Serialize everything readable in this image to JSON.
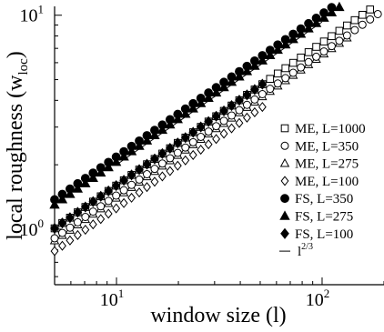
{
  "chart_data": {
    "type": "scatter",
    "xscale": "log",
    "yscale": "log",
    "xlim": [
      5,
      200
    ],
    "ylim": [
      0.55,
      11
    ],
    "xlabel": "window size (l)",
    "ylabel": "local roughness (w",
    "ylabel_sub": "loc",
    "ylabel_close": ")",
    "x_ticks": [
      {
        "value": 10,
        "base": "10",
        "exp": "1"
      },
      {
        "value": 100,
        "base": "10",
        "exp": "2"
      }
    ],
    "y_ticks": [
      {
        "value": 1,
        "base": "10",
        "exp": "0"
      },
      {
        "value": 10,
        "base": "10",
        "exp": "1"
      }
    ],
    "legend_position": "right",
    "series": [
      {
        "name": "ME, L=1000",
        "marker": "square",
        "filled": false,
        "a": 0.345,
        "end": 200
      },
      {
        "name": "ME, L=350",
        "marker": "circle",
        "filled": false,
        "a": 0.31,
        "end": 190
      },
      {
        "name": "ME, L=275",
        "marker": "triangle",
        "filled": false,
        "a": 0.302,
        "end": 140
      },
      {
        "name": "ME, L=100",
        "marker": "diamond",
        "filled": false,
        "a": 0.27,
        "end": 52
      },
      {
        "name": "FS, L=350",
        "marker": "circle",
        "filled": true,
        "a": 0.47,
        "end": 175
      },
      {
        "name": "FS, L=275",
        "marker": "triangle",
        "filled": true,
        "a": 0.445,
        "end": 135
      },
      {
        "name": "FS, L=100",
        "marker": "diamond",
        "filled": true,
        "a": 0.345,
        "end": 52
      }
    ],
    "guide_line": {
      "label_base": "l",
      "label_exp": "2/3",
      "exponent": 0.6667,
      "x": [
        10,
        100
      ],
      "y": [
        2.0,
        9.3
      ]
    }
  }
}
